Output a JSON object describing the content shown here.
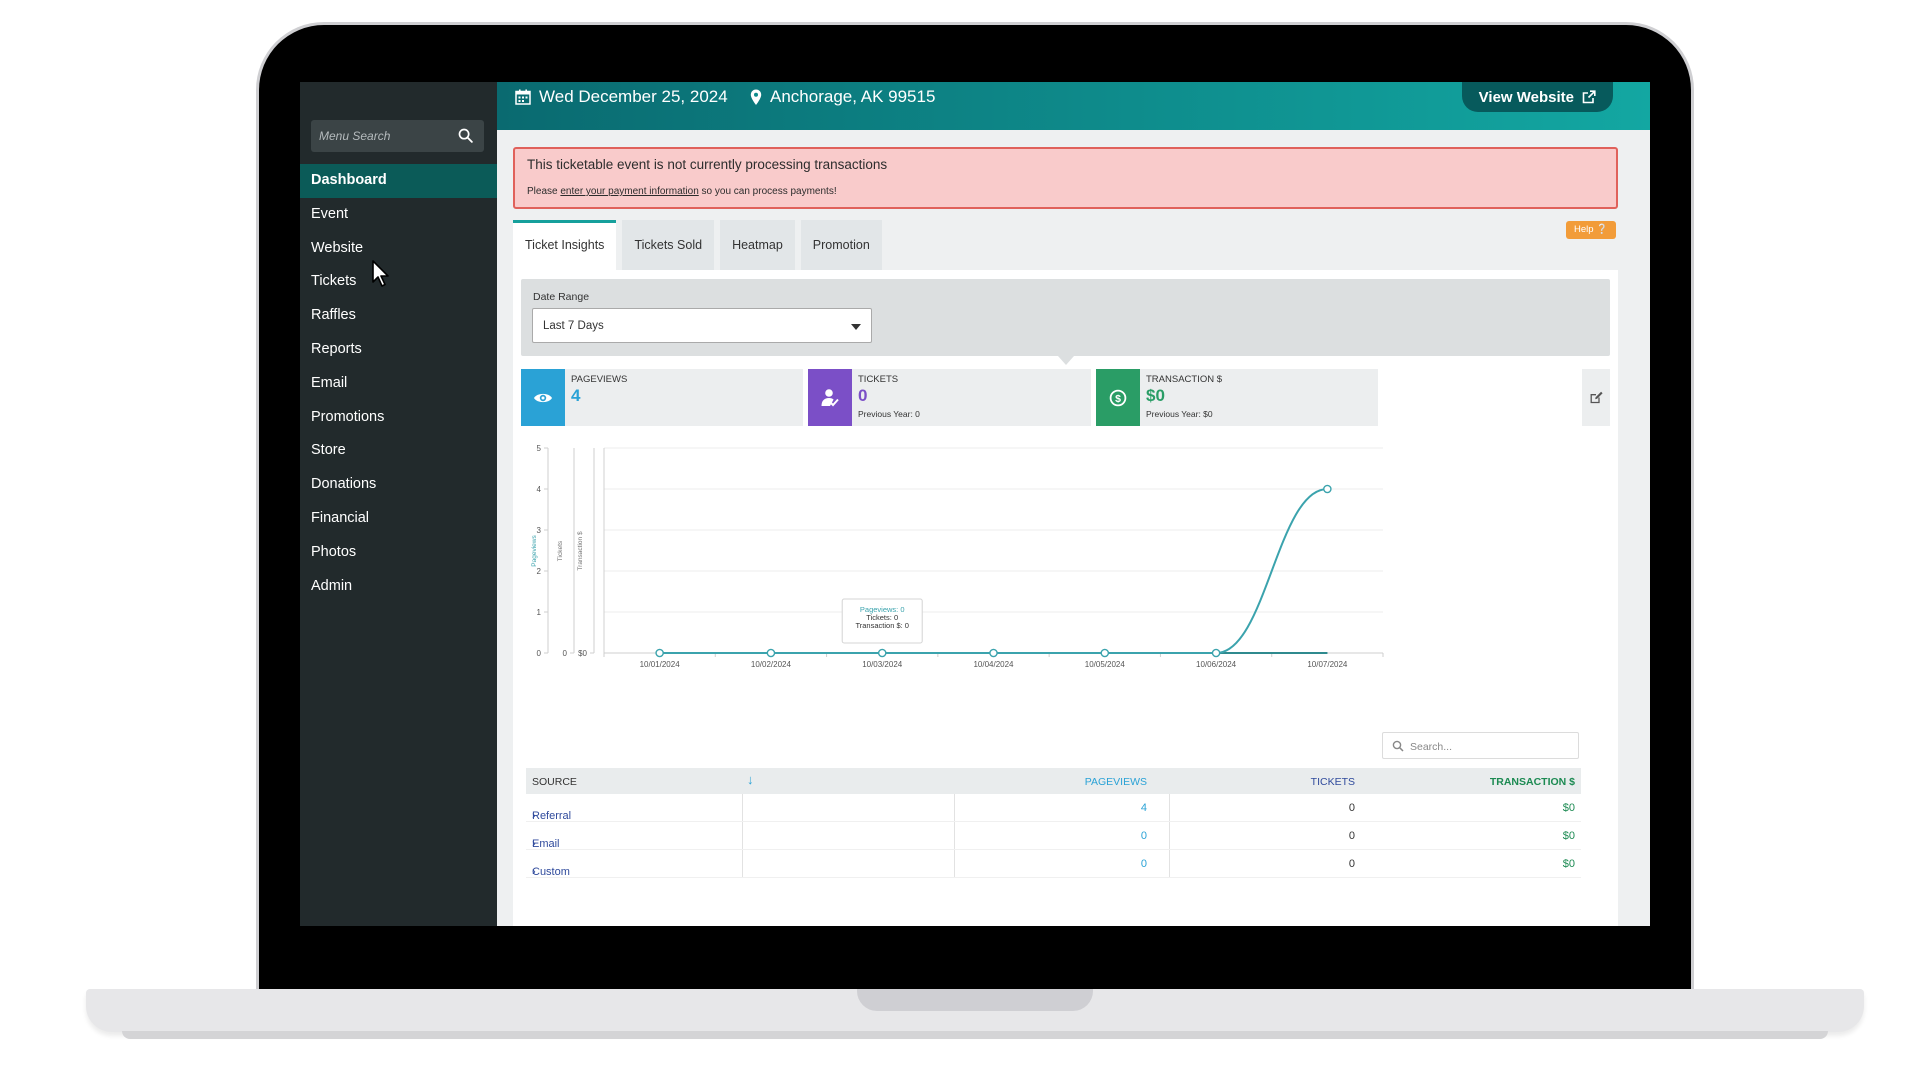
{
  "app": {
    "topbar": {
      "date": "Wed December 25, 2024",
      "location": "Anchorage, AK 99515",
      "view_website": "View Website"
    },
    "sidebar": {
      "search_placeholder": "Menu Search",
      "items": [
        {
          "label": "Dashboard",
          "active": true
        },
        {
          "label": "Event"
        },
        {
          "label": "Website"
        },
        {
          "label": "Tickets"
        },
        {
          "label": "Raffles"
        },
        {
          "label": "Reports"
        },
        {
          "label": "Email"
        },
        {
          "label": "Promotions"
        },
        {
          "label": "Store"
        },
        {
          "label": "Donations"
        },
        {
          "label": "Financial"
        },
        {
          "label": "Photos"
        },
        {
          "label": "Admin"
        }
      ]
    },
    "alert": {
      "title": "This ticketable event is not currently processing transactions",
      "sub_prefix": "Please ",
      "sub_link": "enter your payment information",
      "sub_suffix": " so you can process payments!"
    },
    "help": "Help",
    "tabs": [
      "Ticket Insights",
      "Tickets Sold",
      "Heatmap",
      "Promotion"
    ],
    "date_range": {
      "label": "Date Range",
      "value": "Last 7 Days"
    },
    "stats": {
      "pageviews": {
        "label": "PAGEVIEWS",
        "value": "4",
        "color": "#2aa2d6"
      },
      "tickets": {
        "label": "TICKETS",
        "value": "0",
        "prev": "Previous Year: 0",
        "color": "#7b4fc7"
      },
      "transactions": {
        "label": "TRANSACTION $",
        "value": "$0",
        "prev": "Previous Year: $0",
        "color": "#2a9d66"
      }
    },
    "table": {
      "search_placeholder": "Search...",
      "headers": {
        "source": "SOURCE",
        "pageviews": "PAGEVIEWS",
        "tickets": "TICKETS",
        "transactions": "TRANSACTION $"
      },
      "rows": [
        {
          "source": "Referral",
          "pageviews": "4",
          "tickets": "0",
          "transactions": "$0"
        },
        {
          "source": "Email",
          "pageviews": "0",
          "tickets": "0",
          "transactions": "$0"
        },
        {
          "source": "Custom",
          "pageviews": "0",
          "tickets": "0",
          "transactions": "$0"
        }
      ]
    }
  },
  "chart_data": {
    "type": "line",
    "categories": [
      "10/01/2024",
      "10/02/2024",
      "10/03/2024",
      "10/04/2024",
      "10/05/2024",
      "10/06/2024",
      "10/07/2024"
    ],
    "series": [
      {
        "name": "Pageviews",
        "values": [
          0,
          0,
          0,
          0,
          0,
          0,
          4
        ],
        "color": "#3ba3ad"
      },
      {
        "name": "Tickets",
        "values": [
          0,
          0,
          0,
          0,
          0,
          0,
          0
        ],
        "color": "#7b4fc7"
      },
      {
        "name": "Transaction $",
        "values": [
          0,
          0,
          0,
          0,
          0,
          0,
          0
        ],
        "color": "#2a9d66"
      }
    ],
    "yaxes": [
      {
        "label": "Pageviews",
        "ticks": [
          "0",
          "1",
          "2",
          "3",
          "4",
          "5"
        ]
      },
      {
        "label": "Tickets",
        "ticks": [
          "0"
        ]
      },
      {
        "label": "Transaction $",
        "ticks": [
          "$0"
        ]
      }
    ],
    "ylim": [
      0,
      5
    ],
    "tooltip": {
      "category": "10/03/2024",
      "lines": [
        "Pageviews: 0",
        "Tickets: 0",
        "Transaction $: 0"
      ]
    }
  }
}
